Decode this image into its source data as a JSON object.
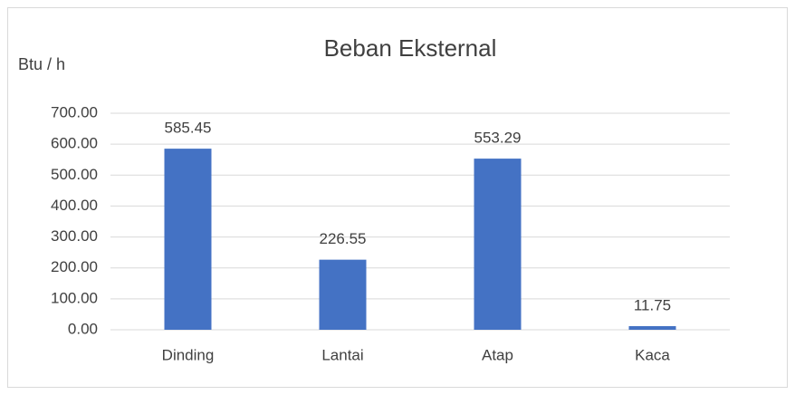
{
  "chart_data": {
    "type": "bar",
    "title": "Beban Eksternal",
    "y_label": "Btu / h",
    "categories": [
      "Dinding",
      "Lantai",
      "Atap",
      "Kaca"
    ],
    "values": [
      585.45,
      226.55,
      553.29,
      11.75
    ],
    "color": "#4472c4",
    "ylim": [
      0,
      700
    ],
    "yticks": [
      {
        "value": 0,
        "label": "0.00"
      },
      {
        "value": 100,
        "label": "100.00"
      },
      {
        "value": 200,
        "label": "200.00"
      },
      {
        "value": 300,
        "label": "300.00"
      },
      {
        "value": 400,
        "label": "400.00"
      },
      {
        "value": 500,
        "label": "500.00"
      },
      {
        "value": 600,
        "label": "600.00"
      },
      {
        "value": 700,
        "label": "700.00"
      }
    ],
    "grid": true
  }
}
